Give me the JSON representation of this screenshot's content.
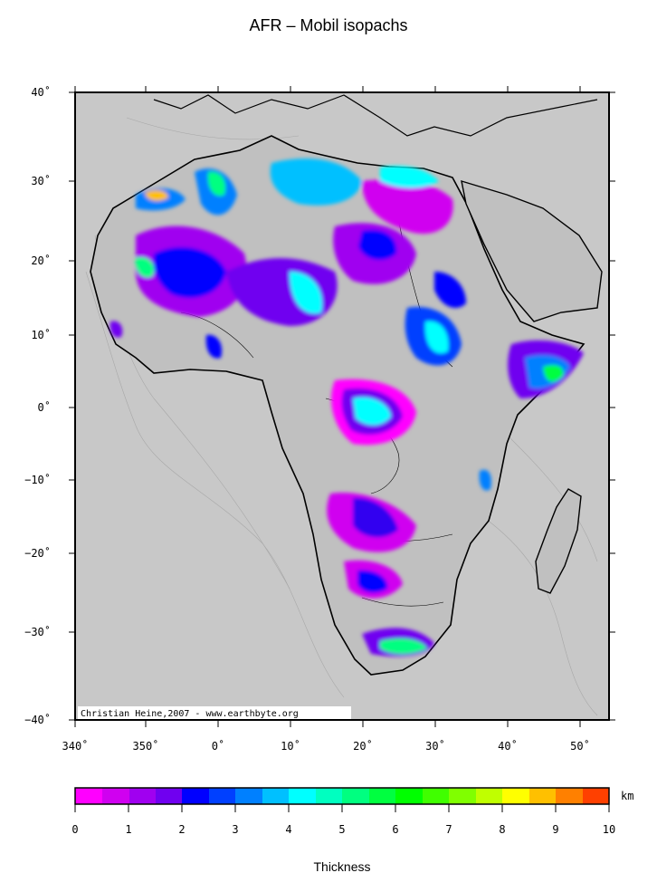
{
  "title": "AFR – Mobil isopachs",
  "map": {
    "lat_labels": [
      "40˚",
      "30˚",
      "20˚",
      "10˚",
      "0˚",
      "−10˚",
      "−20˚",
      "−30˚",
      "−40˚"
    ],
    "lon_labels": [
      "340˚",
      "350˚",
      "0˚",
      "10˚",
      "20˚",
      "30˚",
      "40˚",
      "50˚"
    ],
    "credit": "Christian Heine,2007 - www.earthbyte.org",
    "land_color": "#c8c8c8",
    "coast_color": "#000000"
  },
  "colorbar": {
    "title": "Thickness",
    "unit": "km",
    "ticks": [
      "0",
      "1",
      "2",
      "3",
      "4",
      "5",
      "6",
      "7",
      "8",
      "9",
      "10"
    ],
    "colors": [
      "#ff00ff",
      "#d000f0",
      "#a000f0",
      "#7000f0",
      "#3000f0",
      "#0000ff",
      "#0040ff",
      "#0080ff",
      "#00c0ff",
      "#00ffff",
      "#00ffc0",
      "#00ff80",
      "#00ff40",
      "#00ff00",
      "#40ff00",
      "#80ff00",
      "#c0ff00",
      "#ffff00",
      "#ffc000",
      "#ff8000",
      "#ff4000"
    ]
  }
}
